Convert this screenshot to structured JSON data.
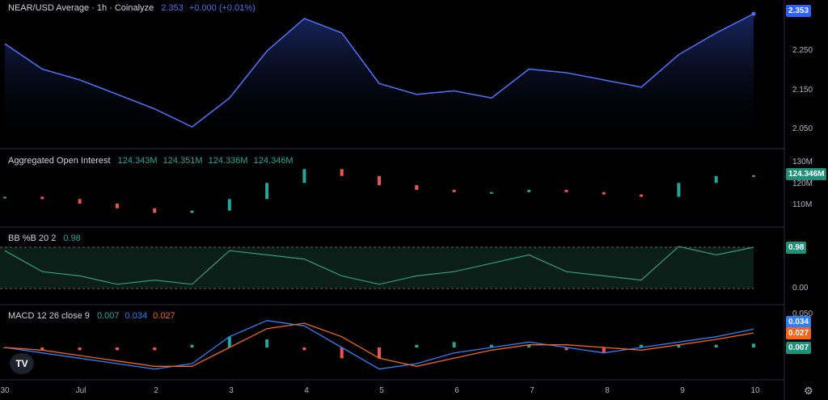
{
  "header": {
    "symbol": "NEAR/USD Average · 1h · Coinalyze",
    "price": "2.353",
    "change": "+0.000 (+0.01%)"
  },
  "colors": {
    "price": "#4c6ef5",
    "up": "#26a69a",
    "down": "#ef5350",
    "bb": "#2f9e7a",
    "macd": "#2b7fff",
    "signal": "#f7631b"
  },
  "chart_data": [
    {
      "type": "area",
      "title": "NEAR/USD Average · 1h · Coinalyze",
      "y_ticks": [
        "2.250",
        "2.150",
        "2.050"
      ],
      "last_value_label": "2.353",
      "x_ticks": [
        "30",
        "Jul",
        "2",
        "3",
        "4",
        "5",
        "6",
        "7",
        "8",
        "9",
        "10"
      ],
      "x": [
        0,
        0.5,
        1,
        1.5,
        2,
        2.5,
        3,
        3.5,
        4,
        4.5,
        5,
        5.5,
        6,
        6.5,
        7,
        7.5,
        8,
        8.5,
        9,
        9.5,
        10
      ],
      "values": [
        2.27,
        2.2,
        2.17,
        2.13,
        2.09,
        2.04,
        2.12,
        2.25,
        2.34,
        2.3,
        2.16,
        2.13,
        2.14,
        2.12,
        2.2,
        2.19,
        2.17,
        2.15,
        2.24,
        2.3,
        2.353
      ]
    },
    {
      "type": "bar",
      "title": "Aggregated Open Interest",
      "legend_values": [
        "124.343M",
        "124.351M",
        "124.336M",
        "124.346M"
      ],
      "y_ticks": [
        "130M",
        "120M",
        "110M"
      ],
      "last_value_label": "124.346M",
      "x": [
        0,
        0.5,
        1,
        1.5,
        2,
        2.5,
        3,
        3.5,
        4,
        4.5,
        5,
        5.5,
        6,
        6.5,
        7,
        7.5,
        8,
        8.5,
        9,
        9.5,
        10
      ],
      "values": [
        115,
        114,
        112,
        110,
        108,
        109,
        114,
        121,
        127,
        124,
        120,
        118,
        117,
        117,
        118,
        117,
        116,
        115,
        121,
        124,
        124.346
      ]
    },
    {
      "type": "line",
      "title": "BB %B 20 2",
      "legend_values": [
        "0.98"
      ],
      "y_ticks": [
        "0.98",
        "0.00"
      ],
      "last_value_label": "0.98",
      "x": [
        0,
        0.5,
        1,
        1.5,
        2,
        2.5,
        3,
        3.5,
        4,
        4.5,
        5,
        5.5,
        6,
        6.5,
        7,
        7.5,
        8,
        8.5,
        9,
        9.5,
        10
      ],
      "values": [
        0.9,
        0.4,
        0.3,
        0.1,
        0.2,
        0.1,
        0.9,
        0.8,
        0.7,
        0.3,
        0.1,
        0.3,
        0.4,
        0.6,
        0.8,
        0.4,
        0.3,
        0.2,
        1.0,
        0.8,
        0.98
      ]
    },
    {
      "type": "bar",
      "title": "MACD 12 26 close 9",
      "legend_values": [
        "0.007",
        "0.034",
        "0.027"
      ],
      "y_ticks": [
        "0.050"
      ],
      "last_value_labels": [
        "0.034",
        "0.027",
        "0.007"
      ],
      "x": [
        0,
        0.5,
        1,
        1.5,
        2,
        2.5,
        3,
        3.5,
        4,
        4.5,
        5,
        5.5,
        6,
        6.5,
        7,
        7.5,
        8,
        8.5,
        9,
        9.5,
        10
      ],
      "series": [
        {
          "values": [
            0.0,
            -0.01,
            -0.02,
            -0.03,
            -0.04,
            -0.03,
            0.02,
            0.05,
            0.04,
            0.0,
            -0.04,
            -0.03,
            -0.01,
            0.0,
            0.01,
            0.0,
            -0.01,
            0.0,
            0.01,
            0.02,
            0.034
          ]
        },
        {
          "values": [
            0.0,
            -0.005,
            -0.015,
            -0.025,
            -0.035,
            -0.035,
            0.0,
            0.035,
            0.045,
            0.02,
            -0.02,
            -0.035,
            -0.02,
            -0.005,
            0.005,
            0.005,
            0.0,
            -0.005,
            0.005,
            0.015,
            0.027
          ]
        },
        {
          "values": [
            0.0,
            -0.005,
            -0.005,
            -0.005,
            -0.005,
            0.005,
            0.02,
            0.015,
            -0.005,
            -0.02,
            -0.02,
            0.005,
            0.01,
            0.005,
            0.005,
            -0.005,
            -0.01,
            0.005,
            0.005,
            0.005,
            0.007
          ]
        }
      ]
    }
  ]
}
